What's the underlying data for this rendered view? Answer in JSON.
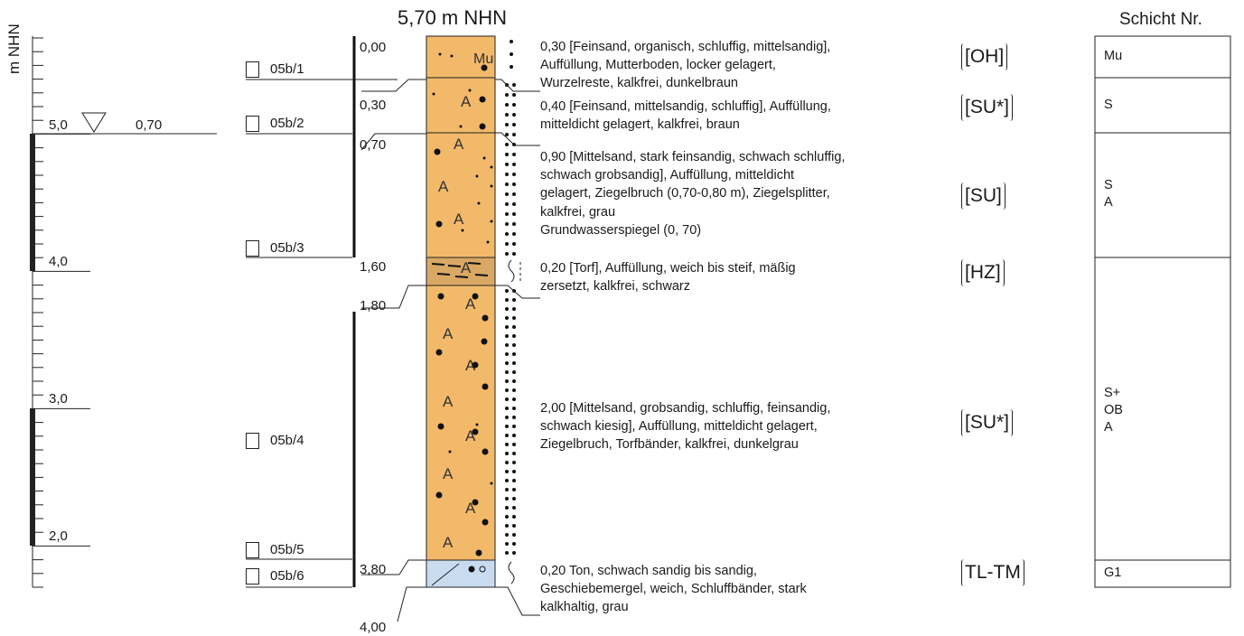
{
  "header": {
    "elevation": "5,70 m NHN",
    "layer_header": "Schicht Nr."
  },
  "scale": {
    "axis_label": "m NHN",
    "ticks": [
      "5,0",
      "4,0",
      "3,0",
      "2,0"
    ]
  },
  "groundwater": {
    "symbol": "▽",
    "depth": "0,70"
  },
  "samples": [
    "05b/1",
    "05b/2",
    "05b/3",
    "05b/4",
    "05b/5",
    "05b/6"
  ],
  "depths": [
    "0,00",
    "0,30",
    "0,70",
    "1,60",
    "1,80",
    "3,80",
    "4,00"
  ],
  "layers": [
    {
      "description": "0,30 [Feinsand, organisch, schluffig, mittelsandig],\nAuffüllung, Mutterboden, locker gelagert,\nWurzelreste, kalkfrei, dunkelbraun",
      "code": "[OH]",
      "layer_no": "Mu",
      "color": "#f3b96a"
    },
    {
      "description": "0,40 [Feinsand, mittelsandig, schluffig], Auffüllung,\nmitteldicht gelagert, kalkfrei, braun",
      "code": "[SU*]",
      "layer_no": "S",
      "color": "#f3b96a"
    },
    {
      "description": "0,90 [Mittelsand, stark feinsandig, schwach schluffig,\nschwach grobsandig], Auffüllung, mitteldicht\ngelagert, Ziegelbruch (0,70-0,80 m), Ziegelsplitter,\nkalkfrei, grau\nGrundwasserspiegel (0, 70)",
      "code": "[SU]",
      "layer_no": "S\nA",
      "color": "#f3b96a"
    },
    {
      "description": "0,20 [Torf], Auffüllung, weich bis steif, mäßig\nzersetzt, kalkfrei, schwarz",
      "code": "[HZ]",
      "layer_no": "",
      "color": "#d9a865"
    },
    {
      "description": "2,00 [Mittelsand, grobsandig, schluffig, feinsandig,\nschwach kiesig], Auffüllung, mitteldicht gelagert,\nZiegelbruch, Torfbänder, kalkfrei, dunkelgrau",
      "code": "[SU*]",
      "layer_no": "S+\nOB\nA",
      "color": "#f3b96a"
    },
    {
      "description": "0,20 Ton, schwach sandig bis sandig,\nGeschiebemergel, weich, Schluffbänder, stark\nkalkhaltig, grau",
      "code": "TL-TM",
      "layer_no": "G1",
      "color": "#c9dcef"
    }
  ]
}
